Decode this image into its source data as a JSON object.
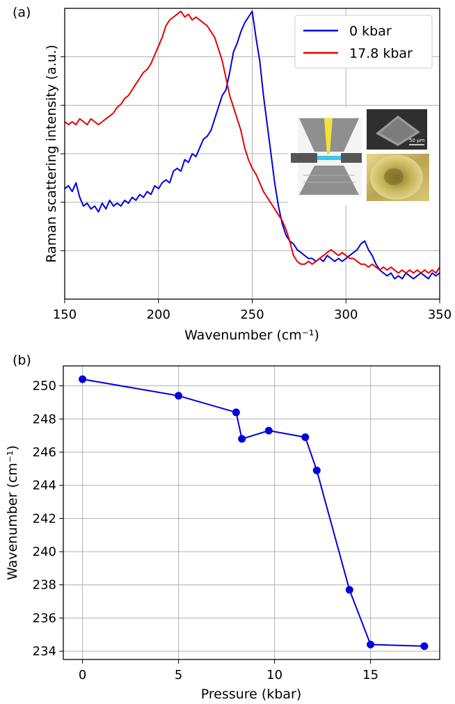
{
  "chart_data": [
    {
      "panel_label": "(a)",
      "type": "line",
      "xlabel": "Wavenumber (cm⁻¹)",
      "ylabel": "Raman scattering intensity (a.u.)",
      "xlim": [
        150,
        350
      ],
      "ylim": [
        0,
        1
      ],
      "xticks": [
        "150",
        "200",
        "250",
        "300",
        "350"
      ],
      "grid": true,
      "legend_position": "top-right",
      "inset": "diamond-anvil-cell photos",
      "series": [
        {
          "name": "0 kbar",
          "color": "#0000dd",
          "x": [
            150,
            152,
            154,
            156,
            158,
            160,
            162,
            164,
            166,
            168,
            170,
            172,
            174,
            176,
            178,
            180,
            182,
            184,
            186,
            188,
            190,
            192,
            194,
            196,
            198,
            200,
            202,
            204,
            206,
            208,
            210,
            212,
            214,
            216,
            218,
            220,
            222,
            224,
            226,
            228,
            230,
            232,
            234,
            236,
            238,
            240,
            242,
            244,
            246,
            248,
            250,
            252,
            254,
            256,
            258,
            260,
            262,
            264,
            266,
            268,
            270,
            272,
            274,
            276,
            278,
            280,
            282,
            284,
            286,
            288,
            290,
            292,
            294,
            296,
            298,
            300,
            302,
            304,
            306,
            308,
            310,
            312,
            314,
            316,
            318,
            320,
            322,
            324,
            326,
            328,
            330,
            332,
            334,
            336,
            338,
            340,
            342,
            344,
            346,
            348,
            350
          ],
          "values": [
            0.38,
            0.39,
            0.37,
            0.4,
            0.35,
            0.32,
            0.33,
            0.31,
            0.32,
            0.3,
            0.33,
            0.31,
            0.34,
            0.32,
            0.33,
            0.32,
            0.34,
            0.33,
            0.35,
            0.34,
            0.36,
            0.35,
            0.37,
            0.36,
            0.39,
            0.38,
            0.4,
            0.41,
            0.4,
            0.44,
            0.45,
            0.44,
            0.48,
            0.47,
            0.5,
            0.49,
            0.52,
            0.55,
            0.56,
            0.58,
            0.62,
            0.66,
            0.7,
            0.72,
            0.78,
            0.85,
            0.88,
            0.92,
            0.95,
            0.97,
            0.99,
            0.9,
            0.82,
            0.7,
            0.6,
            0.5,
            0.4,
            0.32,
            0.26,
            0.22,
            0.2,
            0.19,
            0.17,
            0.16,
            0.15,
            0.14,
            0.14,
            0.13,
            0.14,
            0.13,
            0.15,
            0.14,
            0.13,
            0.14,
            0.13,
            0.14,
            0.15,
            0.16,
            0.17,
            0.19,
            0.2,
            0.17,
            0.15,
            0.12,
            0.1,
            0.09,
            0.08,
            0.09,
            0.07,
            0.08,
            0.07,
            0.09,
            0.08,
            0.07,
            0.08,
            0.09,
            0.08,
            0.07,
            0.09,
            0.08,
            0.09
          ]
        },
        {
          "name": "17.8 kbar",
          "color": "#e60000",
          "x": [
            150,
            152,
            154,
            156,
            158,
            160,
            162,
            164,
            166,
            168,
            170,
            172,
            174,
            176,
            178,
            180,
            182,
            184,
            186,
            188,
            190,
            192,
            194,
            196,
            198,
            200,
            202,
            204,
            206,
            208,
            210,
            212,
            214,
            216,
            218,
            220,
            222,
            224,
            226,
            228,
            230,
            232,
            234,
            236,
            238,
            240,
            242,
            244,
            246,
            248,
            250,
            252,
            254,
            256,
            258,
            260,
            262,
            264,
            266,
            268,
            270,
            272,
            274,
            276,
            278,
            280,
            282,
            284,
            286,
            288,
            290,
            292,
            294,
            296,
            298,
            300,
            302,
            304,
            306,
            308,
            310,
            312,
            314,
            316,
            318,
            320,
            322,
            324,
            326,
            328,
            330,
            332,
            334,
            336,
            338,
            340,
            342,
            344,
            346,
            348,
            350
          ],
          "values": [
            0.61,
            0.6,
            0.61,
            0.6,
            0.62,
            0.61,
            0.6,
            0.62,
            0.61,
            0.6,
            0.61,
            0.62,
            0.63,
            0.64,
            0.66,
            0.67,
            0.69,
            0.7,
            0.72,
            0.74,
            0.76,
            0.78,
            0.79,
            0.81,
            0.84,
            0.87,
            0.9,
            0.94,
            0.96,
            0.97,
            0.98,
            0.99,
            0.97,
            0.98,
            0.96,
            0.97,
            0.96,
            0.95,
            0.94,
            0.92,
            0.9,
            0.86,
            0.82,
            0.76,
            0.7,
            0.66,
            0.62,
            0.58,
            0.52,
            0.48,
            0.45,
            0.43,
            0.4,
            0.37,
            0.35,
            0.33,
            0.31,
            0.29,
            0.27,
            0.24,
            0.2,
            0.15,
            0.13,
            0.12,
            0.12,
            0.13,
            0.12,
            0.13,
            0.14,
            0.15,
            0.16,
            0.17,
            0.16,
            0.15,
            0.16,
            0.15,
            0.14,
            0.14,
            0.13,
            0.12,
            0.12,
            0.11,
            0.12,
            0.11,
            0.1,
            0.11,
            0.1,
            0.11,
            0.1,
            0.09,
            0.1,
            0.09,
            0.1,
            0.09,
            0.1,
            0.09,
            0.1,
            0.09,
            0.1,
            0.09,
            0.11
          ]
        }
      ]
    },
    {
      "panel_label": "(b)",
      "type": "line",
      "xlabel": "Pressure (kbar)",
      "ylabel": "Wavenumber (cm⁻¹)",
      "xlim": [
        -1,
        18.6
      ],
      "ylim": [
        233.5,
        251.2
      ],
      "xticks": [
        "0",
        "5",
        "10",
        "15"
      ],
      "yticks": [
        "234",
        "236",
        "238",
        "240",
        "242",
        "244",
        "246",
        "248",
        "250"
      ],
      "grid": true,
      "series": [
        {
          "color": "#0000dd",
          "x": [
            0,
            5,
            8,
            8.3,
            9.7,
            11.6,
            12.2,
            13.9,
            15,
            17.8
          ],
          "values": [
            250.4,
            249.4,
            248.4,
            246.8,
            247.3,
            246.9,
            244.9,
            237.7,
            234.4,
            234.3
          ]
        }
      ]
    }
  ]
}
